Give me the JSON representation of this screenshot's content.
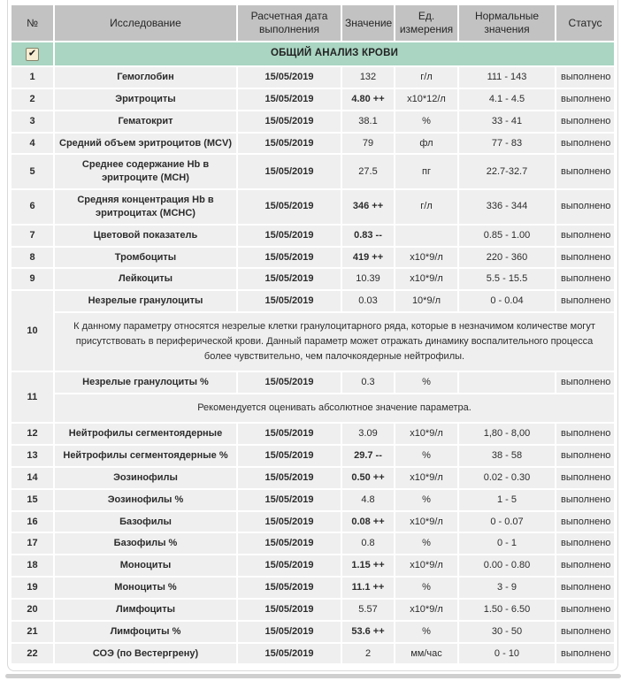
{
  "colors": {
    "header_bg": "#c2c2c2",
    "section_bg": "#a9d5c2",
    "row_bg": "#efefef",
    "checkbox_bg": "#f6edd2",
    "checkbox_border": "#85856b",
    "text": "#2c2c2c"
  },
  "table": {
    "columns": [
      {
        "label": "№"
      },
      {
        "label": "Исследование"
      },
      {
        "label": "Расчетная дата выполнения"
      },
      {
        "label": "Значение"
      },
      {
        "label": "Ед. измерения"
      },
      {
        "label": "Нормальные значения"
      },
      {
        "label": "Статус"
      }
    ],
    "section": {
      "title": "ОБЩИЙ АНАЛИЗ КРОВИ",
      "checked": true,
      "checkmark_icon": "✔"
    },
    "rows": [
      {
        "num": "1",
        "name": "Гемоглобин",
        "date": "15/05/2019",
        "value": "132",
        "value_flagged": false,
        "unit": "г/л",
        "normal": "111 - 143",
        "status": "выполнено"
      },
      {
        "num": "2",
        "name": "Эритроциты",
        "date": "15/05/2019",
        "value": "4.80 ++",
        "value_flagged": true,
        "unit": "x10*12/л",
        "normal": "4.1 - 4.5",
        "status": "выполнено"
      },
      {
        "num": "3",
        "name": "Гематокрит",
        "date": "15/05/2019",
        "value": "38.1",
        "value_flagged": false,
        "unit": "%",
        "normal": "33 - 41",
        "status": "выполнено"
      },
      {
        "num": "4",
        "name": "Средний объем эритроцитов (MCV)",
        "date": "15/05/2019",
        "value": "79",
        "value_flagged": false,
        "unit": "фл",
        "normal": "77 - 83",
        "status": "выполнено"
      },
      {
        "num": "5",
        "name": "Среднее содержание Hb в эритроците (MCH)",
        "date": "15/05/2019",
        "value": "27.5",
        "value_flagged": false,
        "unit": "пг",
        "normal": "22.7-32.7",
        "status": "выполнено"
      },
      {
        "num": "6",
        "name": "Средняя концентрация Hb в эритроцитах (MCHC)",
        "date": "15/05/2019",
        "value": "346 ++",
        "value_flagged": true,
        "unit": "г/л",
        "normal": "336 - 344",
        "status": "выполнено"
      },
      {
        "num": "7",
        "name": "Цветовой показатель",
        "date": "15/05/2019",
        "value": "0.83 --",
        "value_flagged": true,
        "unit": "",
        "normal": "0.85 - 1.00",
        "status": "выполнено"
      },
      {
        "num": "8",
        "name": "Тромбоциты",
        "date": "15/05/2019",
        "value": "419 ++",
        "value_flagged": true,
        "unit": "x10*9/л",
        "normal": "220 - 360",
        "status": "выполнено"
      },
      {
        "num": "9",
        "name": "Лейкоциты",
        "date": "15/05/2019",
        "value": "10.39",
        "value_flagged": false,
        "unit": "x10*9/л",
        "normal": "5.5 - 15.5",
        "status": "выполнено"
      },
      {
        "num": "10",
        "name": "Незрелые гранулоциты",
        "date": "15/05/2019",
        "value": "0.03",
        "value_flagged": false,
        "unit": "10*9/л",
        "normal": "0 - 0.04",
        "status": "выполнено",
        "note": "К данному параметру относятся незрелые клетки гранулоцитарного ряда, которые в незначимом количестве могут присутствовать в периферической крови. Данный параметр может отражать динамику воспалительного процесса более чувствительно, чем палочкоядерные нейтрофилы."
      },
      {
        "num": "11",
        "name": "Незрелые гранулоциты %",
        "date": "15/05/2019",
        "value": "0.3",
        "value_flagged": false,
        "unit": "%",
        "normal": "",
        "status": "выполнено",
        "note": "Рекомендуется оценивать абсолютное значение параметра."
      },
      {
        "num": "12",
        "name": "Нейтрофилы сегментоядерные",
        "date": "15/05/2019",
        "value": "3.09",
        "value_flagged": false,
        "unit": "x10*9/л",
        "normal": "1,80 - 8,00",
        "status": "выполнено"
      },
      {
        "num": "13",
        "name": "Нейтрофилы сегментоядерные %",
        "date": "15/05/2019",
        "value": "29.7 --",
        "value_flagged": true,
        "unit": "%",
        "normal": "38 - 58",
        "status": "выполнено"
      },
      {
        "num": "14",
        "name": "Эозинофилы",
        "date": "15/05/2019",
        "value": "0.50 ++",
        "value_flagged": true,
        "unit": "x10*9/л",
        "normal": "0.02 - 0.30",
        "status": "выполнено"
      },
      {
        "num": "15",
        "name": "Эозинофилы %",
        "date": "15/05/2019",
        "value": "4.8",
        "value_flagged": false,
        "unit": "%",
        "normal": "1 - 5",
        "status": "выполнено"
      },
      {
        "num": "16",
        "name": "Базофилы",
        "date": "15/05/2019",
        "value": "0.08 ++",
        "value_flagged": true,
        "unit": "x10*9/л",
        "normal": "0 - 0.07",
        "status": "выполнено"
      },
      {
        "num": "17",
        "name": "Базофилы %",
        "date": "15/05/2019",
        "value": "0.8",
        "value_flagged": false,
        "unit": "%",
        "normal": "0 - 1",
        "status": "выполнено"
      },
      {
        "num": "18",
        "name": "Моноциты",
        "date": "15/05/2019",
        "value": "1.15 ++",
        "value_flagged": true,
        "unit": "x10*9/л",
        "normal": "0.00 - 0.80",
        "status": "выполнено"
      },
      {
        "num": "19",
        "name": "Моноциты %",
        "date": "15/05/2019",
        "value": "11.1 ++",
        "value_flagged": true,
        "unit": "%",
        "normal": "3 - 9",
        "status": "выполнено"
      },
      {
        "num": "20",
        "name": "Лимфоциты",
        "date": "15/05/2019",
        "value": "5.57",
        "value_flagged": false,
        "unit": "x10*9/л",
        "normal": "1.50 - 6.50",
        "status": "выполнено"
      },
      {
        "num": "21",
        "name": "Лимфоциты %",
        "date": "15/05/2019",
        "value": "53.6 ++",
        "value_flagged": true,
        "unit": "%",
        "normal": "30 - 50",
        "status": "выполнено"
      },
      {
        "num": "22",
        "name": "СОЭ (по Вестергрену)",
        "date": "15/05/2019",
        "value": "2",
        "value_flagged": false,
        "unit": "мм/час",
        "normal": "0 - 10",
        "status": "выполнено"
      }
    ]
  }
}
